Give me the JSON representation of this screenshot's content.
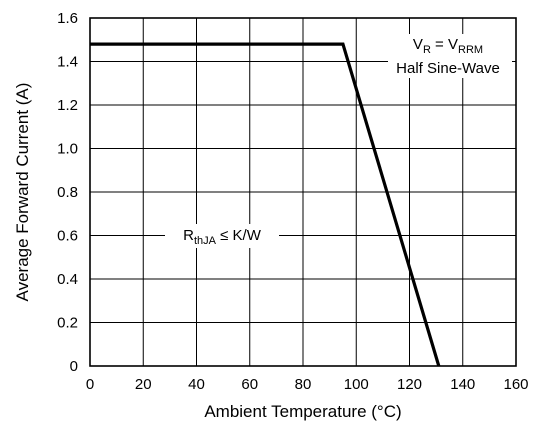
{
  "chart_data": {
    "type": "line",
    "xlabel": "Ambient Temperature (°C)",
    "ylabel": "Average Forward Current (A)",
    "xlim": [
      0,
      160
    ],
    "ylim": [
      0,
      1.6
    ],
    "x_ticks": [
      "0",
      "20",
      "40",
      "60",
      "80",
      "100",
      "120",
      "140",
      "160"
    ],
    "y_ticks": [
      "0",
      "0.2",
      "0.4",
      "0.6",
      "0.8",
      "1.0",
      "1.2",
      "1.4",
      "1.6"
    ],
    "grid": true,
    "series": [
      {
        "x": [
          0,
          95,
          131
        ],
        "y": [
          1.48,
          1.48,
          0
        ]
      }
    ],
    "annotations": {
      "condition_line1": {
        "main1": "V",
        "sub1": "R",
        "mid": " = V",
        "sub2": "RRM"
      },
      "condition_line2": "Half Sine-Wave",
      "thermal": {
        "main": "R",
        "sub": "thJA",
        "rest": " ≤ K/W"
      }
    }
  }
}
